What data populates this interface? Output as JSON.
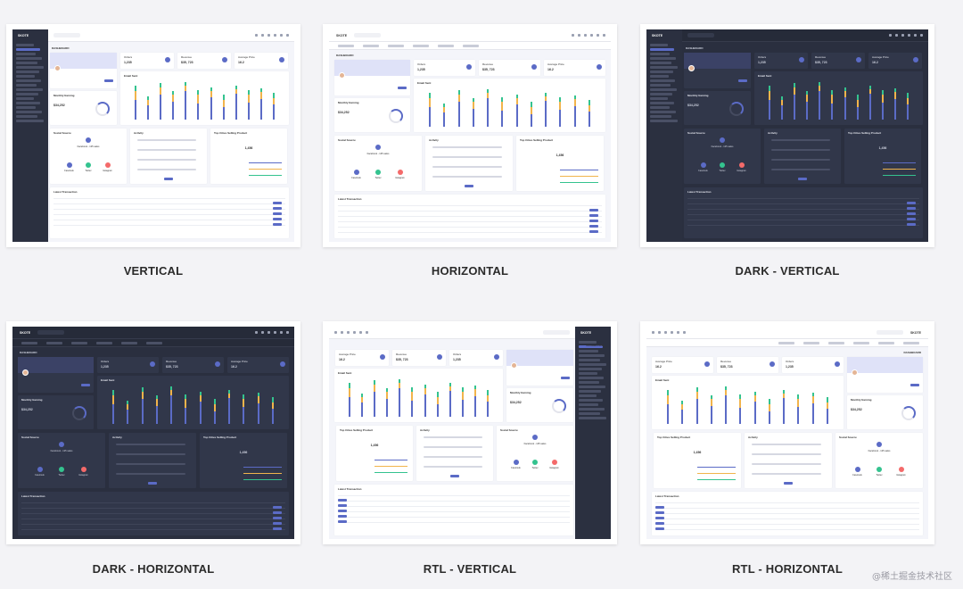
{
  "layouts": [
    {
      "id": "vertical",
      "caption": "VERTICAL",
      "theme": "light",
      "nav": "vertical",
      "dir": "ltr"
    },
    {
      "id": "horizontal",
      "caption": "HORIZONTAL",
      "theme": "light",
      "nav": "horizontal",
      "dir": "ltr"
    },
    {
      "id": "dark-vertical",
      "caption": "DARK - VERTICAL",
      "theme": "dark",
      "nav": "vertical",
      "dir": "ltr"
    },
    {
      "id": "dark-horizontal",
      "caption": "DARK - HORIZONTAL",
      "theme": "dark",
      "nav": "horizontal",
      "dir": "ltr"
    },
    {
      "id": "rtl-vertical",
      "caption": "RTL - VERTICAL",
      "theme": "light",
      "nav": "vertical",
      "dir": "rtl"
    },
    {
      "id": "rtl-horizontal",
      "caption": "RTL - HORIZONTAL",
      "theme": "light",
      "nav": "horizontal",
      "dir": "rtl"
    }
  ],
  "dashboard": {
    "brand": "SKOTE",
    "page_title": "DASHBOARD",
    "stats": [
      {
        "label": "Orders",
        "value": "1,235"
      },
      {
        "label": "Revenue",
        "value": "$35, 723"
      },
      {
        "label": "Average Price",
        "value": "16.2"
      }
    ],
    "email_sent": "Email Sent",
    "monthly_earning": "Monthly Earning",
    "earning_value": "$34,252",
    "social_source": "Social Source",
    "facebook_sales": "Facebook - 125 sales",
    "activity": "Activity",
    "top_cities": "Top Cities Selling Product",
    "top_value": "1,456",
    "latest_transaction": "Latest Transaction",
    "social": [
      {
        "name": "Facebook",
        "color": "#5b6bc6"
      },
      {
        "name": "Twitter",
        "color": "#34c38f"
      },
      {
        "name": "Instagram",
        "color": "#f46a6a"
      }
    ],
    "bar_colors": [
      "#5b6bc6",
      "#f1b44c",
      "#34c38f"
    ],
    "bars": [
      [
        0.55,
        0.25,
        0.15
      ],
      [
        0.4,
        0.15,
        0.1
      ],
      [
        0.7,
        0.2,
        0.12
      ],
      [
        0.5,
        0.2,
        0.1
      ],
      [
        0.8,
        0.15,
        0.1
      ],
      [
        0.45,
        0.25,
        0.12
      ],
      [
        0.62,
        0.18,
        0.1
      ],
      [
        0.35,
        0.2,
        0.15
      ],
      [
        0.72,
        0.12,
        0.1
      ],
      [
        0.48,
        0.22,
        0.12
      ],
      [
        0.58,
        0.2,
        0.1
      ],
      [
        0.42,
        0.18,
        0.15
      ]
    ]
  },
  "watermark": "@稀土掘金技术社区"
}
